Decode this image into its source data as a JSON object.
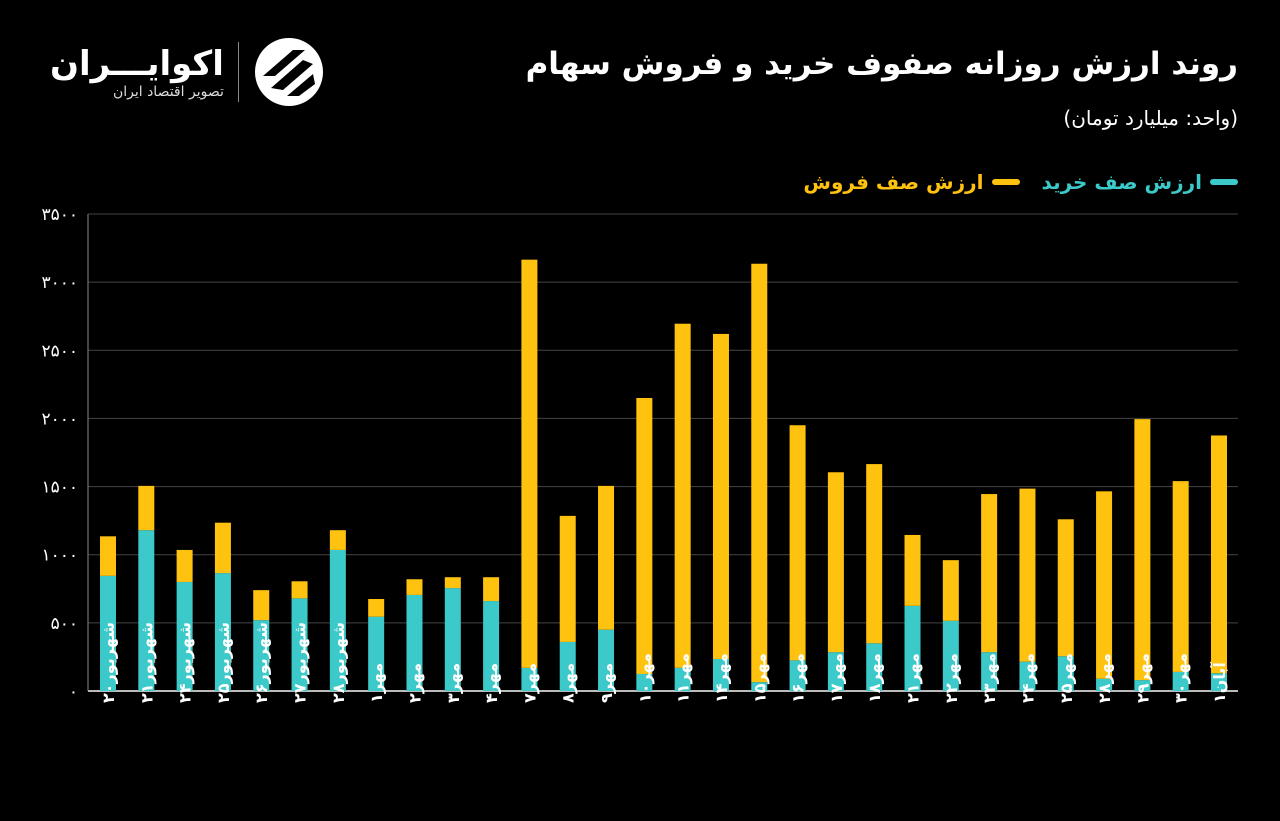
{
  "header": {
    "title": "روند ارزش روزانه صفوف خرید و فروش سهام",
    "subtitle": "(واحد: میلیارد تومان)",
    "logo_name": "اکوایـــران",
    "logo_tagline": "تصویر اقتصاد ایران"
  },
  "colors": {
    "buy": "#3cc9c9",
    "sell": "#ffc20e",
    "background": "#000000"
  },
  "chart_data": {
    "type": "bar",
    "stacked": true,
    "title": "روند ارزش روزانه صفوف خرید و فروش سهام",
    "subtitle": "(واحد: میلیارد تومان)",
    "xlabel": "",
    "ylabel": "",
    "ylim": [
      0,
      3500
    ],
    "grid": true,
    "legend_position": "top-right",
    "y_ticks": [
      0,
      500,
      1000,
      1500,
      2000,
      2500,
      3000,
      3500
    ],
    "y_tick_labels": [
      "۰",
      "۵۰۰",
      "۱۰۰۰",
      "۱۵۰۰",
      "۲۰۰۰",
      "۲۵۰۰",
      "۳۰۰۰",
      "۳۵۰۰"
    ],
    "categories": [
      "شهریور۲۰",
      "شهریور۲۱",
      "شهریور۲۴",
      "شهریور۲۵",
      "شهریور۲۶",
      "شهریور۲۷",
      "شهریور۲۸",
      "مهر۱",
      "مهر۲",
      "مهر۳",
      "مهر۴",
      "مهر۷",
      "مهر۸",
      "مهر۹",
      "مهر۱۰",
      "مهر۱۱",
      "مهر۱۴",
      "مهر۱۵",
      "مهر۱۶",
      "مهر۱۷",
      "مهر۱۸",
      "مهر۲۱",
      "مهر۲۲",
      "مهر۲۳",
      "مهر۲۴",
      "مهر۲۵",
      "مهر۲۸",
      "مهر۲۹",
      "مهر۳۰",
      "آبان۱"
    ],
    "series": [
      {
        "name": "ارزش صف خرید",
        "values": [
          845,
          1180,
          800,
          865,
          520,
          680,
          1035,
          545,
          705,
          755,
          660,
          170,
          360,
          450,
          125,
          170,
          235,
          65,
          225,
          285,
          350,
          625,
          515,
          285,
          215,
          255,
          90,
          80,
          140,
          130
        ]
      },
      {
        "name": "ارزش صف فروش",
        "values": [
          290,
          325,
          235,
          370,
          220,
          125,
          145,
          130,
          115,
          80,
          175,
          2995,
          925,
          1055,
          2025,
          2525,
          2385,
          3070,
          1725,
          1320,
          1315,
          520,
          445,
          1160,
          1270,
          1005,
          1375,
          1915,
          1400,
          1745
        ]
      }
    ]
  }
}
